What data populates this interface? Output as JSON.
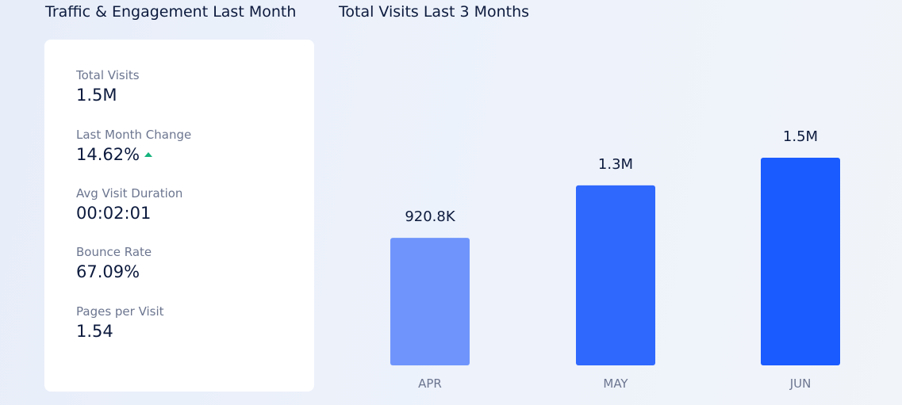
{
  "left_panel": {
    "title": "Traffic & Engagement Last Month",
    "metrics": [
      {
        "label": "Total Visits",
        "value": "1.5M"
      },
      {
        "label": "Last Month Change",
        "value": "14.62%",
        "trend": "up",
        "trend_color": "#14b37d"
      },
      {
        "label": "Avg Visit Duration",
        "value": "00:02:01"
      },
      {
        "label": "Bounce Rate",
        "value": "67.09%"
      },
      {
        "label": "Pages per Visit",
        "value": "1.54"
      }
    ]
  },
  "right_panel": {
    "title": "Total Visits Last 3 Months"
  },
  "chart_data": {
    "type": "bar",
    "categories": [
      "APR",
      "MAY",
      "JUN"
    ],
    "values": [
      920800,
      1300000,
      1500000
    ],
    "data_labels": [
      "920.8K",
      "1.3M",
      "1.5M"
    ],
    "colors": [
      "#6f95fc",
      "#2f68fd",
      "#1a5bff"
    ],
    "title": "",
    "xlabel": "",
    "ylabel": "",
    "grid": false
  }
}
